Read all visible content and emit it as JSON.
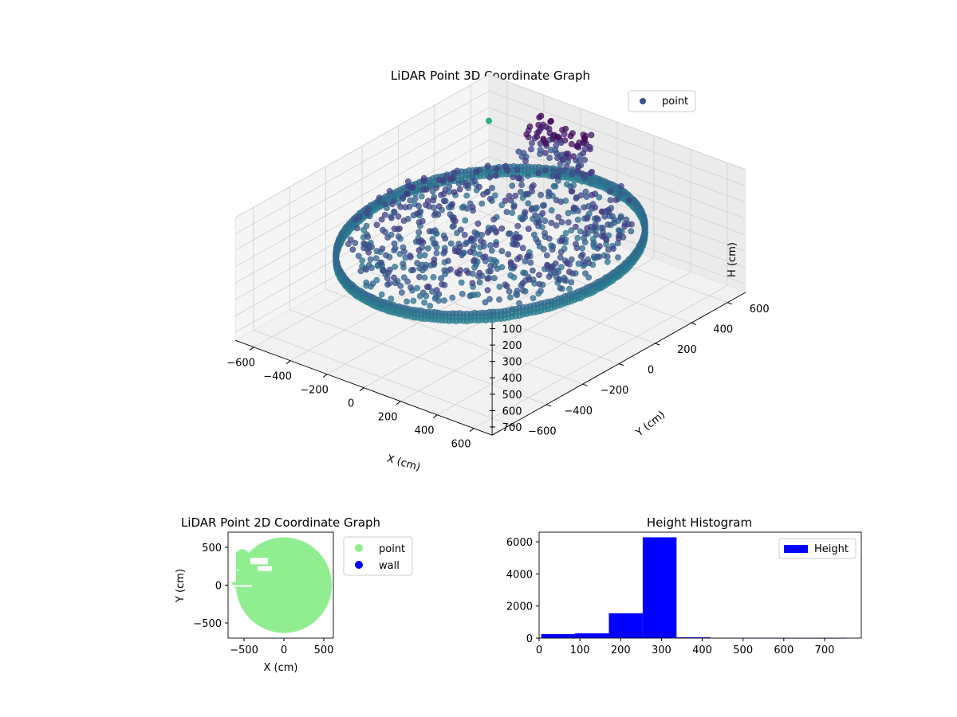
{
  "chart_data": [
    {
      "type": "scatter",
      "projection": "3d",
      "title": "LiDAR Point 3D Coordinate Graph",
      "xlabel": "X (cm)",
      "ylabel": "Y (cm)",
      "zlabel": "H (cm)",
      "xlim": [
        -700,
        700
      ],
      "ylim": [
        -700,
        700
      ],
      "zlim": [
        0,
        750
      ],
      "z_inverted": true,
      "xticks": [
        -600,
        -400,
        -200,
        0,
        200,
        400,
        600
      ],
      "yticks": [
        -600,
        -400,
        -200,
        0,
        200,
        400,
        600
      ],
      "zticks": [
        0,
        100,
        200,
        300,
        400,
        500,
        600,
        700
      ],
      "grid": true,
      "legend": {
        "placement": "upper-right",
        "entries": [
          {
            "label": "point",
            "color": "#3b528b"
          }
        ]
      },
      "colormap": "viridis",
      "series": [
        {
          "name": "point",
          "description_of_distribution": "ring wall radius ~600 with heights 280-330, dense interior ~150-300, sparse high cluster near X=-350 Y=600 at 100-250",
          "ring_radius": 600,
          "ring_height_range": [
            280,
            330
          ],
          "samples": [
            {
              "x": -600,
              "y": 0,
              "z": 310
            },
            {
              "x": 0,
              "y": 600,
              "z": 300
            },
            {
              "x": 600,
              "y": 0,
              "z": 320
            },
            {
              "x": 0,
              "y": -600,
              "z": 310
            },
            {
              "x": -420,
              "y": 420,
              "z": 300
            },
            {
              "x": 420,
              "y": -420,
              "z": 315
            },
            {
              "x": -250,
              "y": 650,
              "z": 120
            },
            {
              "x": -350,
              "y": 600,
              "z": 180
            },
            {
              "x": -100,
              "y": 620,
              "z": 90
            },
            {
              "x": -650,
              "y": 650,
              "z": 230
            },
            {
              "x": 100,
              "y": 200,
              "z": 250
            },
            {
              "x": -200,
              "y": 0,
              "z": 280
            }
          ]
        }
      ]
    },
    {
      "type": "scatter",
      "title": "LiDAR Point 2D Coordinate Graph",
      "xlabel": "X (cm)",
      "ylabel": "Y (cm)",
      "xlim": [
        -700,
        620
      ],
      "ylim": [
        -700,
        700
      ],
      "xticks": [
        -500,
        0,
        500
      ],
      "yticks": [
        -500,
        0,
        500
      ],
      "legend": {
        "placement": "outside-right",
        "entries": [
          {
            "label": "point",
            "color": "#90ee90"
          },
          {
            "label": "wall",
            "color": "#0000ff"
          }
        ]
      },
      "series": [
        {
          "name": "point",
          "color": "#90ee90",
          "shape": "filled disc, radius ~600 centered at origin"
        },
        {
          "name": "wall",
          "color": "#0000ff",
          "points": []
        }
      ]
    },
    {
      "type": "bar",
      "subtype": "histogram",
      "title": "Height Histogram",
      "xlabel": "",
      "ylabel": "",
      "xlim": [
        0,
        790
      ],
      "ylim": [
        0,
        6600
      ],
      "xticks": [
        0,
        100,
        200,
        300,
        400,
        500,
        600,
        700
      ],
      "yticks": [
        0,
        2000,
        4000,
        6000
      ],
      "legend": {
        "placement": "upper-right",
        "entries": [
          {
            "label": "Height",
            "color": "#0000ff"
          }
        ]
      },
      "bin_edges": [
        5,
        88,
        171,
        254,
        337,
        420,
        503,
        586,
        669,
        752
      ],
      "series": [
        {
          "name": "Height",
          "color": "#0000ff",
          "values": [
            250,
            300,
            1550,
            6280,
            50,
            5,
            3,
            2,
            2
          ]
        }
      ]
    }
  ]
}
